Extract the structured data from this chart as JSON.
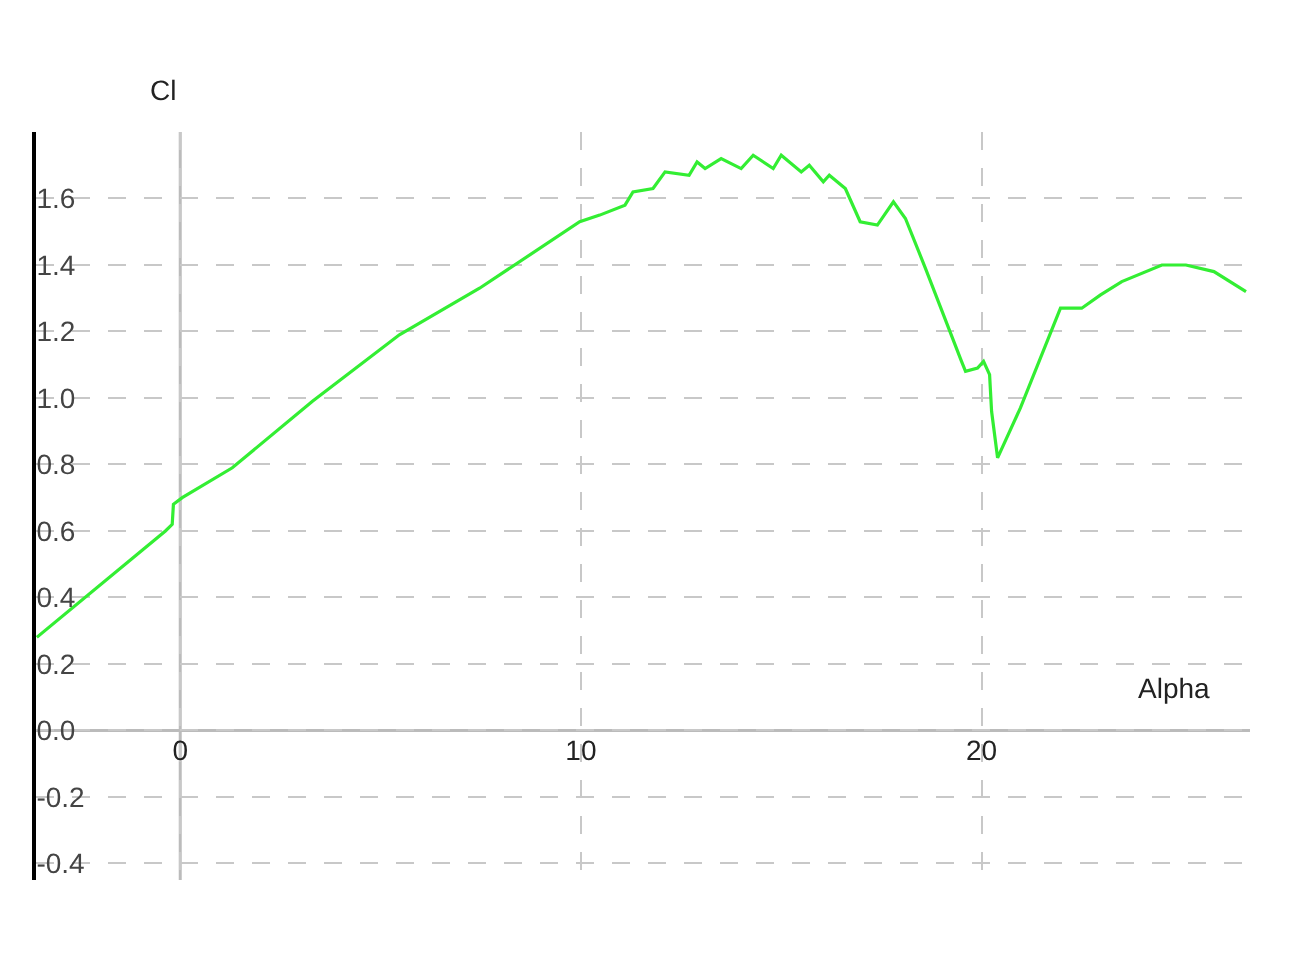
{
  "chart_data": {
    "type": "line",
    "xlabel": "Alpha",
    "ylabel": "Cl",
    "series": [
      {
        "color": "#33ee33",
        "x": [
          -3.58,
          -0.37,
          -0.2,
          -0.17,
          0.05,
          1.3,
          3.3,
          5.47,
          7.47,
          9.97,
          10.47,
          11.1,
          11.3,
          11.8,
          12.1,
          12.7,
          12.9,
          13.1,
          13.5,
          14.0,
          14.3,
          14.8,
          15.0,
          15.5,
          15.7,
          16.05,
          16.2,
          16.6,
          16.97,
          17.4,
          17.8,
          18.1,
          18.6,
          19.5,
          19.6,
          19.9,
          20.05,
          20.2,
          20.25,
          20.4,
          20.97,
          21.97,
          22.5,
          22.97,
          23.5,
          24.5,
          25.1,
          25.8,
          26.6
        ],
        "values": [
          0.28,
          0.6,
          0.62,
          0.68,
          0.7,
          0.79,
          0.99,
          1.19,
          1.33,
          1.53,
          1.55,
          1.58,
          1.62,
          1.63,
          1.68,
          1.67,
          1.71,
          1.69,
          1.72,
          1.69,
          1.73,
          1.69,
          1.73,
          1.68,
          1.7,
          1.65,
          1.67,
          1.63,
          1.53,
          1.52,
          1.59,
          1.54,
          1.39,
          1.11,
          1.08,
          1.09,
          1.11,
          1.07,
          0.96,
          0.82,
          0.97,
          1.27,
          1.27,
          1.31,
          1.35,
          1.4,
          1.4,
          1.38,
          1.32
        ]
      }
    ],
    "xlim": [
      -3.6,
      26.7
    ],
    "xticks": [
      0,
      10,
      20
    ],
    "ylim": [
      -0.45,
      1.8
    ],
    "yticks": [
      -0.4,
      -0.2,
      {
        "value": 0,
        "label": "0.0"
      },
      0.2,
      0.4,
      0.6,
      0.8,
      {
        "value": 1,
        "label": "1.0"
      },
      1.2,
      1.4,
      1.6
    ],
    "grid": true,
    "marker": "none",
    "line_style": "solid"
  }
}
